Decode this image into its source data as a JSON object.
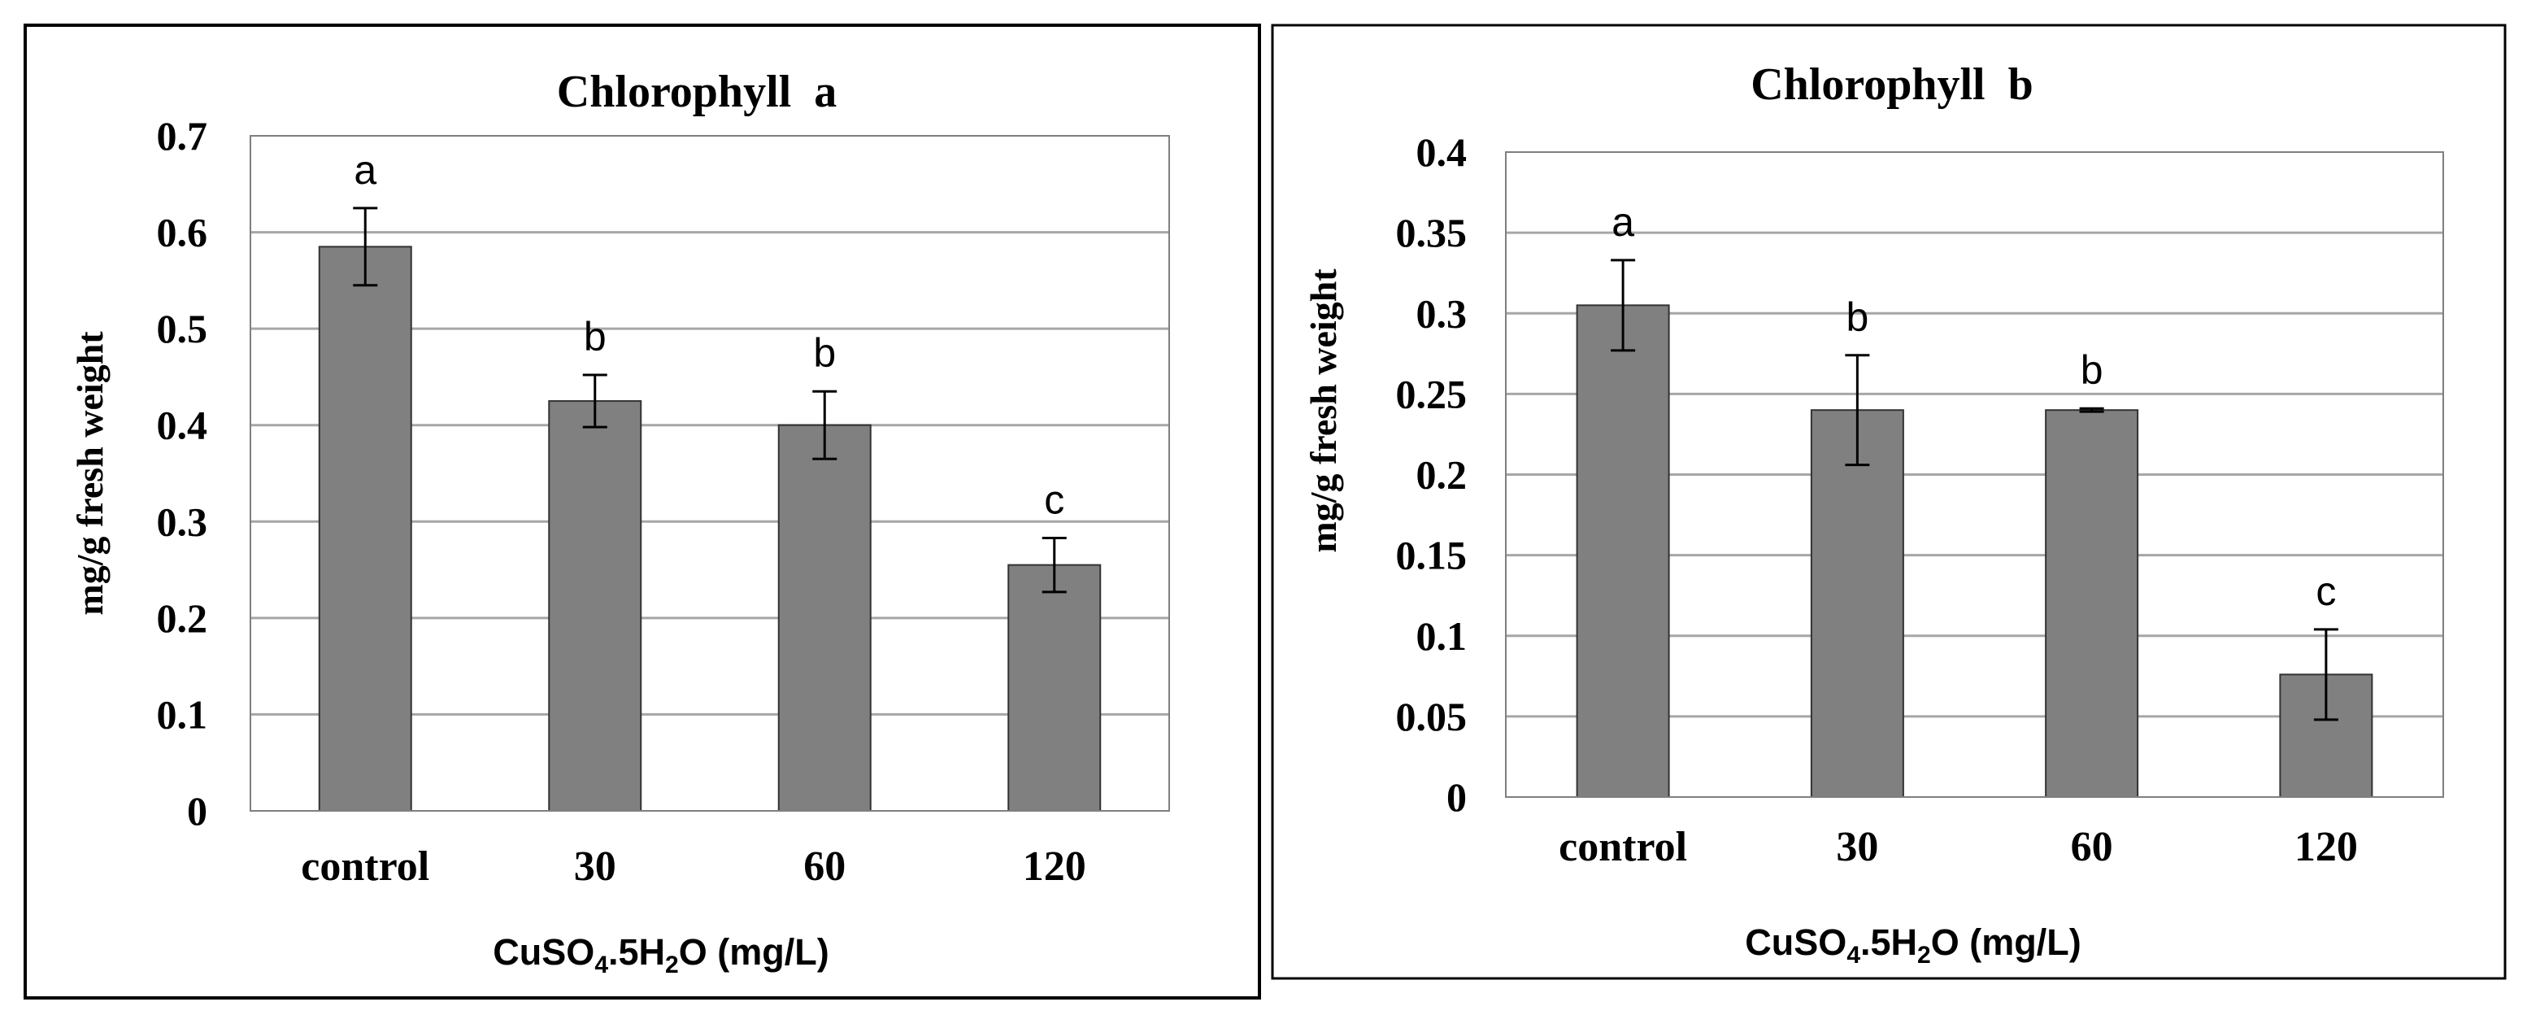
{
  "chart_data": [
    {
      "type": "bar",
      "title": "Chlorophyll  a",
      "categories": [
        "control",
        "30",
        "60",
        "120"
      ],
      "values": [
        0.585,
        0.425,
        0.4,
        0.255
      ],
      "errors": [
        0.04,
        0.027,
        0.035,
        0.028
      ],
      "significance_letters": [
        "a",
        "b",
        "b",
        "c"
      ],
      "xlabel": {
        "prefix": "CuSO",
        "sub1": "4",
        "mid": ".5H",
        "sub2": "2",
        "suffix": "O (mg/L)"
      },
      "ylabel": "mg/g fresh weight",
      "ylim": [
        0,
        0.7
      ],
      "yticks": [
        "0",
        "0.1",
        "0.2",
        "0.3",
        "0.4",
        "0.5",
        "0.6",
        "0.7"
      ],
      "ytick_values": [
        0,
        0.1,
        0.2,
        0.3,
        0.4,
        0.5,
        0.6,
        0.7
      ],
      "grid": true,
      "bar_color": "#808080"
    },
    {
      "type": "bar",
      "title": "Chlorophyll  b",
      "categories": [
        "control",
        "30",
        "60",
        "120"
      ],
      "values": [
        0.305,
        0.24,
        0.24,
        0.076
      ],
      "errors": [
        0.028,
        0.034,
        0.001,
        0.028
      ],
      "significance_letters": [
        "a",
        "b",
        "b",
        "c"
      ],
      "xlabel": {
        "prefix": "CuSO",
        "sub1": "4",
        "mid": ".5H",
        "sub2": "2",
        "suffix": "O (mg/L)"
      },
      "ylabel": "mg/g fresh weight",
      "ylim": [
        0,
        0.4
      ],
      "yticks": [
        "0",
        "0.05",
        "0.1",
        "0.15",
        "0.2",
        "0.25",
        "0.3",
        "0.35",
        "0.4"
      ],
      "ytick_values": [
        0,
        0.05,
        0.1,
        0.15,
        0.2,
        0.25,
        0.3,
        0.35,
        0.4
      ],
      "grid": true,
      "bar_color": "#808080"
    }
  ]
}
